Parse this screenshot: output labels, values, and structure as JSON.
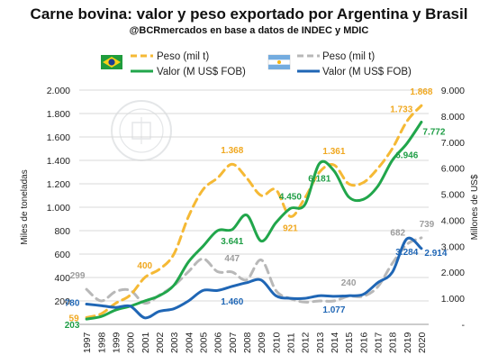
{
  "title": "Carne bovina: valor y peso exportado  por Argentina  y Brasil",
  "subtitle": "@BCRmercados en base a datos de INDEC y MDIC",
  "colors": {
    "brasil_peso": "#f5b935",
    "brasil_valor": "#21a64b",
    "argentina_peso": "#b8b8b8",
    "argentina_valor": "#1f66b5",
    "gridline": "#d9d9d9",
    "watermark": "#cfd3d6"
  },
  "legend": {
    "brasil": {
      "flag_icon": "brazil-flag-icon",
      "peso_label": "Peso (mil t)",
      "valor_label": "Valor (M US$ FOB)"
    },
    "argentina": {
      "flag_icon": "argentina-flag-icon",
      "peso_label": "Peso (mil t)",
      "valor_label": "Valor (M US$ FOB)"
    }
  },
  "chart_data": {
    "type": "line",
    "title": "Carne bovina: valor y peso exportado  por Argentina  y Brasil",
    "subtitle": "@BCRmercados en base a datos de INDEC y MDIC",
    "x": [
      "1997",
      "1998",
      "1999",
      "2000",
      "2001",
      "2002",
      "2003",
      "2004",
      "2005",
      "2006",
      "2007",
      "2008",
      "2009",
      "2010",
      "2011",
      "2012",
      "2013",
      "2014",
      "2015",
      "2016",
      "2017",
      "2018",
      "2019",
      "2020"
    ],
    "y_left": {
      "label": "Miles de toneladas",
      "range": [
        0,
        2000
      ],
      "ticks": [
        "200",
        "400",
        "600",
        "800",
        "1.000",
        "1.200",
        "1.400",
        "1.600",
        "1.800",
        "2.000"
      ],
      "tick_values": [
        200,
        400,
        600,
        800,
        1000,
        1200,
        1400,
        1600,
        1800,
        2000
      ]
    },
    "y_right": {
      "label": "Millones de US$",
      "range": [
        0,
        9000
      ],
      "ticks": [
        "-",
        "1.000",
        "2.000",
        "3.000",
        "4.000",
        "5.000",
        "6.000",
        "7.000",
        "8.000",
        "9.000"
      ],
      "tick_values": [
        0,
        1000,
        2000,
        3000,
        4000,
        5000,
        6000,
        7000,
        8000,
        9000
      ]
    },
    "grid": true,
    "series": [
      {
        "name": "Peso (mil t)",
        "country": "Brasil",
        "axis": "left",
        "style": "dashed",
        "color": "#f5b935",
        "values": [
          59,
          90,
          180,
          250,
          400,
          470,
          600,
          920,
          1150,
          1250,
          1368,
          1250,
          1100,
          1150,
          921,
          1080,
          1300,
          1361,
          1200,
          1210,
          1330,
          1500,
          1733,
          1868
        ]
      },
      {
        "name": "Valor (M US$ FOB)",
        "country": "Brasil",
        "axis": "right",
        "style": "solid",
        "color": "#21a64b",
        "values": [
          203,
          300,
          550,
          700,
          900,
          1100,
          1500,
          2400,
          3000,
          3600,
          3641,
          4200,
          3200,
          3900,
          4450,
          4600,
          6181,
          5900,
          4900,
          4800,
          5300,
          6300,
          6946,
          7772
        ]
      },
      {
        "name": "Peso (mil t)",
        "country": "Argentina",
        "axis": "left",
        "style": "dashed",
        "color": "#b8b8b8",
        "values": [
          299,
          200,
          280,
          290,
          180,
          250,
          330,
          450,
          560,
          450,
          447,
          380,
          550,
          290,
          220,
          190,
          200,
          200,
          240,
          240,
          320,
          520,
          682,
          739
        ]
      },
      {
        "name": "Valor (M US$ FOB)",
        "country": "Argentina",
        "axis": "right",
        "style": "solid",
        "color": "#1f66b5",
        "values": [
          780,
          720,
          650,
          700,
          250,
          500,
          600,
          900,
          1300,
          1300,
          1460,
          1600,
          1700,
          1100,
          1000,
          1000,
          1100,
          1077,
          1100,
          1150,
          1600,
          2000,
          3284,
          2914
        ]
      }
    ],
    "data_labels": [
      {
        "series": 0,
        "index": 0,
        "text": "59"
      },
      {
        "series": 0,
        "index": 4,
        "text": "400"
      },
      {
        "series": 0,
        "index": 10,
        "text": "1.368"
      },
      {
        "series": 0,
        "index": 14,
        "text": "921"
      },
      {
        "series": 0,
        "index": 17,
        "text": "1.361"
      },
      {
        "series": 0,
        "index": 22,
        "text": "1.733"
      },
      {
        "series": 0,
        "index": 23,
        "text": "1.868"
      },
      {
        "series": 1,
        "index": 0,
        "text": "203"
      },
      {
        "series": 1,
        "index": 10,
        "text": "3.641"
      },
      {
        "series": 1,
        "index": 14,
        "text": "4.450"
      },
      {
        "series": 1,
        "index": 16,
        "text": "6.181"
      },
      {
        "series": 1,
        "index": 22,
        "text": "6.946"
      },
      {
        "series": 1,
        "index": 23,
        "text": "7.772"
      },
      {
        "series": 2,
        "index": 0,
        "text": "299"
      },
      {
        "series": 2,
        "index": 10,
        "text": "447"
      },
      {
        "series": 2,
        "index": 18,
        "text": "240"
      },
      {
        "series": 2,
        "index": 22,
        "text": "682"
      },
      {
        "series": 2,
        "index": 23,
        "text": "739"
      },
      {
        "series": 3,
        "index": 0,
        "text": "780"
      },
      {
        "series": 3,
        "index": 10,
        "text": "1.460"
      },
      {
        "series": 3,
        "index": 17,
        "text": "1.077"
      },
      {
        "series": 3,
        "index": 22,
        "text": "3.284"
      },
      {
        "series": 3,
        "index": 23,
        "text": "2.914"
      }
    ]
  }
}
